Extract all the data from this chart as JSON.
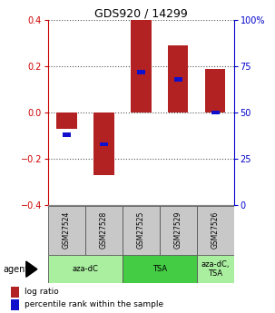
{
  "title": "GDS920 / 14299",
  "samples": [
    "GSM27524",
    "GSM27528",
    "GSM27525",
    "GSM27529",
    "GSM27526"
  ],
  "log_ratios": [
    -0.07,
    -0.27,
    0.4,
    0.29,
    0.19
  ],
  "percentile_ranks": [
    38,
    33,
    72,
    68,
    50
  ],
  "ylim_left": [
    -0.4,
    0.4
  ],
  "ylim_right": [
    0,
    100
  ],
  "yticks_left": [
    -0.4,
    -0.2,
    0.0,
    0.2,
    0.4
  ],
  "yticks_right": [
    0,
    25,
    50,
    75,
    100
  ],
  "ytick_labels_right": [
    "0",
    "25",
    "50",
    "75",
    "100%"
  ],
  "bar_color_red": "#B22222",
  "bar_color_blue": "#1010CC",
  "agent_groups": [
    {
      "label": "aza-dC",
      "samples": [
        0,
        1
      ],
      "color": "#AAEEA0"
    },
    {
      "label": "TSA",
      "samples": [
        2,
        3
      ],
      "color": "#44CC44"
    },
    {
      "label": "aza-dC,\nTSA",
      "samples": [
        4
      ],
      "color": "#AAEEA0"
    }
  ],
  "bar_width": 0.55,
  "blue_bar_width": 0.22,
  "dotted_line_color": "#555555",
  "background_color": "#ffffff",
  "axis_label_color_left": "#CC0000",
  "axis_label_color_right": "#0000CC",
  "legend_red_label": "log ratio",
  "legend_blue_label": "percentile rank within the sample",
  "sample_box_color": "#C8C8C8",
  "agent_label": "agent"
}
